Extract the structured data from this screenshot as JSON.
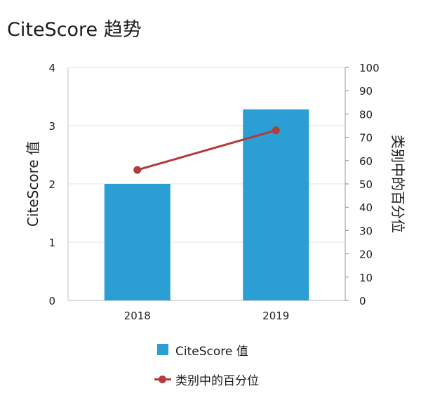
{
  "chart_data": {
    "type": "bar",
    "title": "CiteScore 趋势",
    "categories": [
      "2018",
      "2019"
    ],
    "series": [
      {
        "name": "CiteScore 值",
        "type": "bar",
        "axis": "left",
        "values": [
          2.0,
          3.28
        ],
        "color": "#2b9ed4"
      },
      {
        "name": "类别中的百分位",
        "type": "line",
        "axis": "right",
        "values": [
          56,
          73
        ],
        "color": "#b33a3d"
      }
    ],
    "ylabel": "CiteScore 值",
    "ylim": [
      0,
      4
    ],
    "yticks": [
      "0",
      "1",
      "2",
      "3",
      "4"
    ],
    "y2label": "类别中的百分位",
    "y2lim": [
      0,
      100
    ],
    "y2ticks": [
      "0",
      "10",
      "20",
      "30",
      "40",
      "50",
      "60",
      "70",
      "80",
      "90",
      "100"
    ],
    "grid": true,
    "legend": "bottom"
  }
}
